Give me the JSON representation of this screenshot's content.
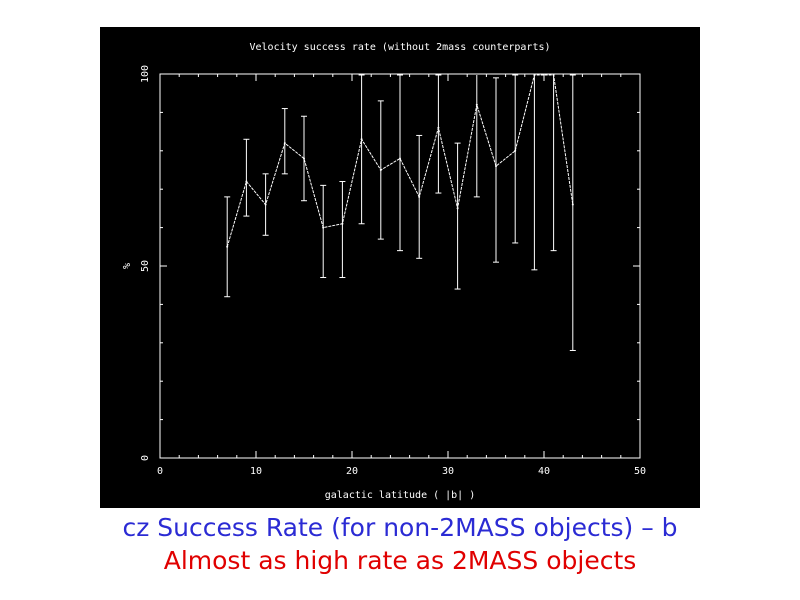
{
  "chart_data": {
    "type": "line",
    "title": "Velocity success rate (without 2mass counterparts)",
    "xlabel": "galactic latitude ( |b| )",
    "ylabel": "%",
    "xlim": [
      0,
      50
    ],
    "ylim": [
      0,
      100
    ],
    "x_ticks": [
      0,
      10,
      20,
      30,
      40,
      50
    ],
    "y_ticks": [
      0,
      50,
      100
    ],
    "x_tick_labels": [
      "0",
      "10",
      "20",
      "30",
      "40",
      "50"
    ],
    "y_tick_labels": [
      "0",
      "50",
      "100"
    ],
    "grid": false,
    "series": [
      {
        "x": [
          7,
          9,
          11,
          13,
          15,
          17,
          19,
          21,
          23,
          25,
          27,
          29,
          31,
          33,
          35,
          37,
          39,
          41,
          43
        ],
        "y": [
          55,
          72,
          66,
          82,
          78,
          60,
          61,
          83,
          75,
          78,
          68,
          86,
          65,
          92,
          76,
          80,
          100,
          100,
          66
        ],
        "y_lower": [
          42,
          63,
          58,
          74,
          67,
          47,
          47,
          61,
          57,
          54,
          52,
          69,
          44,
          68,
          51,
          56,
          49,
          54,
          28
        ],
        "y_upper": [
          68,
          83,
          74,
          91,
          89,
          71,
          72,
          106,
          93,
          101,
          84,
          107,
          82,
          114,
          99,
          104,
          113,
          113,
          103
        ]
      }
    ]
  },
  "captions": {
    "line1": "cz Success Rate (for non-2MASS objects) – b",
    "line2": "Almost as high rate as 2MASS objects"
  },
  "colors": {
    "panel_background": "#000000",
    "plot_foreground": "#ffffff",
    "caption_line1": "#2b2bd4",
    "caption_line2": "#e00000"
  }
}
